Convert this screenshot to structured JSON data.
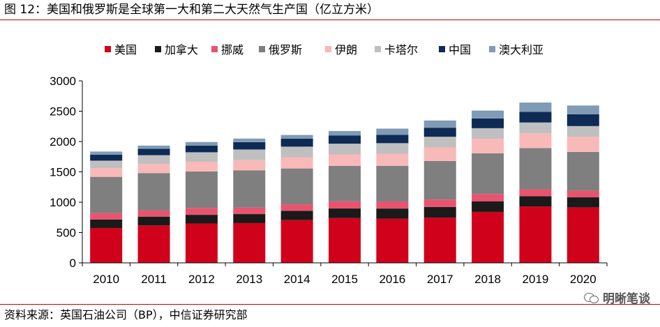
{
  "figure": {
    "title": "图 12：美国和俄罗斯是全球第一大和第二大天然气生产国（亿立方米）",
    "source": "资料来源：英国石油公司（BP），中信证券研究部",
    "watermark": "明晰笔谈",
    "watermark_icon": "wechat-icon"
  },
  "chart_data": {
    "type": "bar",
    "stacked": true,
    "categories": [
      "2010",
      "2011",
      "2012",
      "2013",
      "2014",
      "2015",
      "2016",
      "2017",
      "2018",
      "2019",
      "2020"
    ],
    "ylim": [
      0,
      3000
    ],
    "yticks": [
      0,
      500,
      1000,
      1500,
      2000,
      2500,
      3000
    ],
    "xlabel": "",
    "ylabel": "",
    "grid": false,
    "legend_position": "top",
    "series": [
      {
        "name": "美国",
        "color": "#d0021b",
        "values": [
          575,
          617,
          649,
          656,
          705,
          740,
          729,
          746,
          840,
          930,
          915
        ]
      },
      {
        "name": "加拿大",
        "color": "#1a1a1a",
        "values": [
          140,
          145,
          143,
          148,
          152,
          156,
          166,
          175,
          175,
          169,
          165
        ]
      },
      {
        "name": "挪威",
        "color": "#e8546e",
        "values": [
          105,
          101,
          114,
          108,
          108,
          117,
          116,
          123,
          121,
          114,
          111
        ]
      },
      {
        "name": "俄罗斯",
        "color": "#7f7f7f",
        "values": [
          598,
          617,
          601,
          614,
          591,
          585,
          589,
          636,
          669,
          679,
          638
        ]
      },
      {
        "name": "伊朗",
        "color": "#f9b9b9",
        "values": [
          144,
          150,
          159,
          166,
          185,
          189,
          199,
          223,
          240,
          244,
          251
        ]
      },
      {
        "name": "卡塔尔",
        "color": "#bfbfbf",
        "values": [
          123,
          145,
          157,
          177,
          175,
          178,
          174,
          176,
          175,
          178,
          175
        ]
      },
      {
        "name": "中国",
        "color": "#0d2b55",
        "values": [
          97,
          106,
          111,
          121,
          131,
          136,
          137,
          149,
          161,
          176,
          194
        ]
      },
      {
        "name": "澳大利亚",
        "color": "#7f9bb5",
        "values": [
          53,
          52,
          58,
          59,
          61,
          73,
          103,
          119,
          130,
          153,
          145
        ]
      }
    ]
  }
}
